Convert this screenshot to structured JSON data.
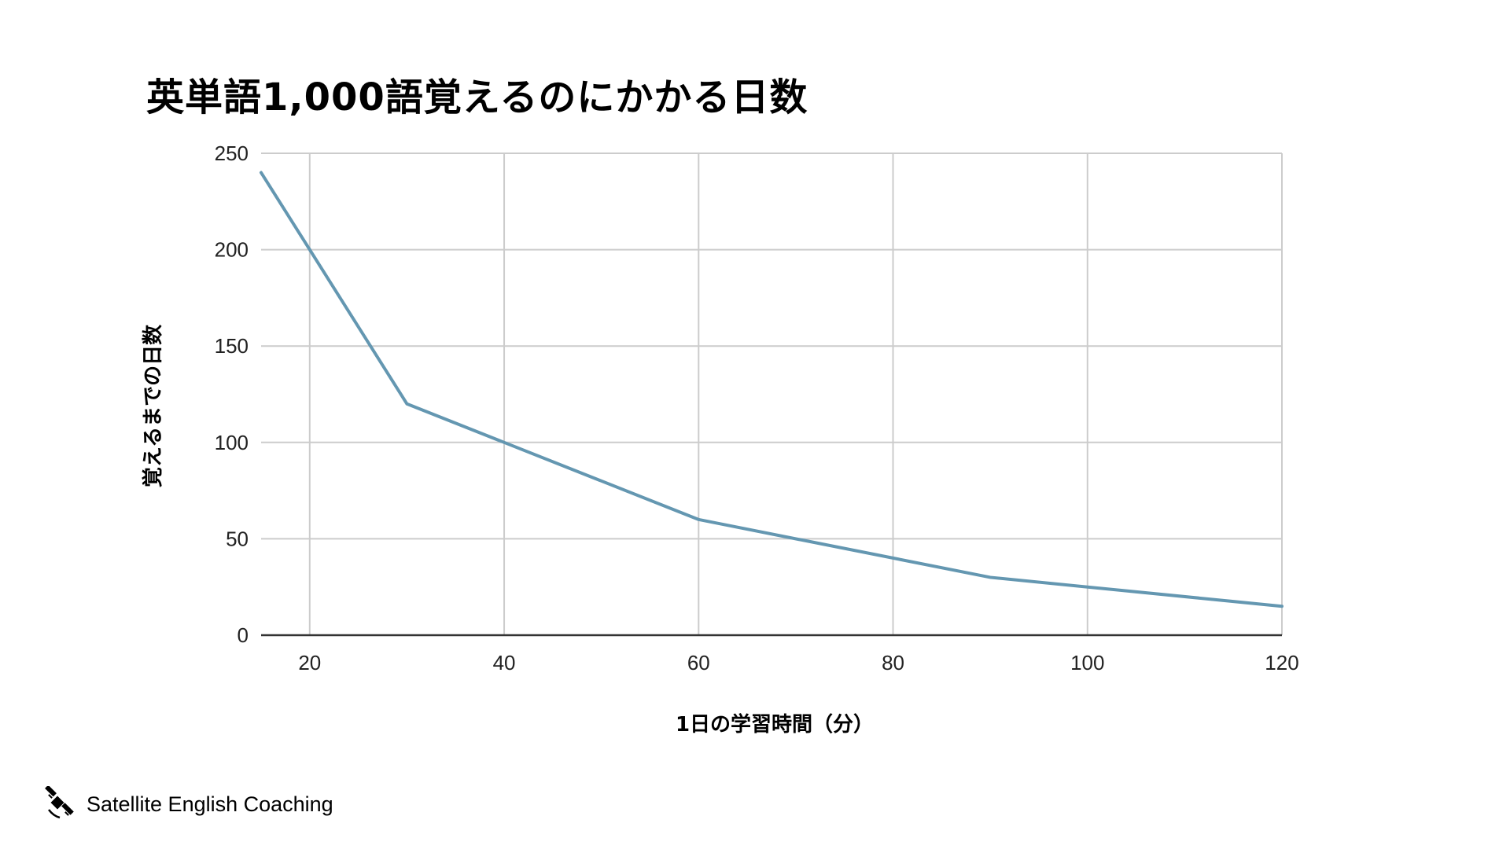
{
  "chart_data": {
    "type": "line",
    "title": "英単語1,000語覚えるのにかかる日数",
    "xlabel": "1日の学習時間（分）",
    "ylabel": "覚えるまでの日数",
    "xlim": [
      15,
      120
    ],
    "ylim": [
      0,
      250
    ],
    "x_ticks": [
      20,
      40,
      60,
      80,
      100,
      120
    ],
    "y_ticks": [
      0,
      50,
      100,
      150,
      200,
      250
    ],
    "grid": true,
    "series": [
      {
        "x": [
          15,
          20,
          30,
          40,
          60,
          90,
          120
        ],
        "y": [
          240,
          200,
          120,
          100,
          60,
          30,
          15
        ],
        "color": "#6497b1"
      }
    ]
  },
  "brand": {
    "name": "Satellite English Coaching",
    "icon": "satellite-icon"
  },
  "colors": {
    "line": "#6497b1",
    "grid": "#cccccc",
    "axis": "#333333"
  }
}
